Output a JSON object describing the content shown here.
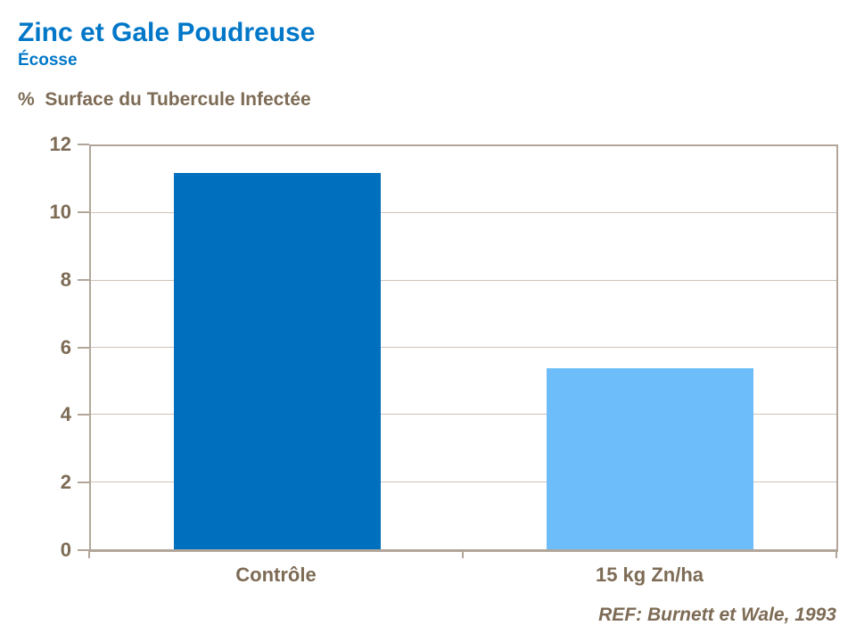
{
  "header": {
    "title": "Zinc et Gale Poudreuse",
    "subtitle": "Écosse"
  },
  "footer": {
    "reference": "REF: Burnett et Wale, 1993"
  },
  "chart_data": {
    "type": "bar",
    "title": "Zinc et Gale Poudreuse",
    "subtitle": "Écosse",
    "ylabel": "%  Surface du Tubercule Infectée",
    "xlabel": "",
    "categories": [
      "Contrôle",
      "15 kg Zn/ha"
    ],
    "values": [
      11.2,
      5.4
    ],
    "ylim": [
      0,
      12
    ],
    "ytick_interval": 2,
    "grid": true,
    "legend_position": "none",
    "bar_colors": [
      "#0070be",
      "#6cbdfa"
    ],
    "axis_color": "#b2a69a",
    "gridline_color": "#cdc3b7",
    "label_color": "#7d6b55",
    "title_color": "#0077c8"
  }
}
